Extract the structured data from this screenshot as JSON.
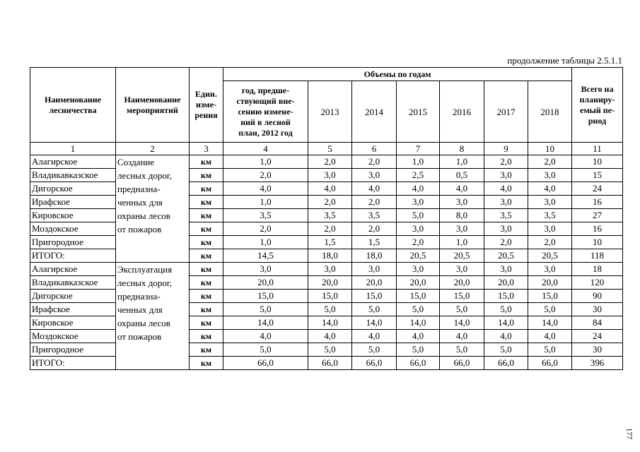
{
  "caption": "продолжение таблицы 2.5.1.1",
  "header": {
    "forestry": "Наименование\nлесничества",
    "activity": "Наименование\nмероприятий",
    "unit": "Един.\nизме-\nрения",
    "group": "Объемы по годам",
    "base_year": "год, предше-\nствующий вне-\nсению измене-\nний в лесной\nплан, 2012 год",
    "years": [
      "2013",
      "2014",
      "2015",
      "2016",
      "2017",
      "2018"
    ],
    "total": "Всего на\nпланиру-\nемый пе-\nриод"
  },
  "column_numbers": [
    "1",
    "2",
    "3",
    "4",
    "5",
    "6",
    "7",
    "8",
    "9",
    "10",
    "11"
  ],
  "sections": [
    {
      "activity": "Создание\nлесных дорог,\nпредназна-\nченных для\nохраны лесов\nот пожаров",
      "rows": [
        [
          "Алагирское",
          "км",
          "1,0",
          "2,0",
          "2,0",
          "1,0",
          "1,0",
          "2,0",
          "2,0",
          "10"
        ],
        [
          "Владикавказское",
          "км",
          "2,0",
          "3,0",
          "3,0",
          "2,5",
          "0,5",
          "3,0",
          "3,0",
          "15"
        ],
        [
          "Дигорское",
          "км",
          "4,0",
          "4,0",
          "4,0",
          "4,0",
          "4,0",
          "4,0",
          "4,0",
          "24"
        ],
        [
          "Ирафское",
          "км",
          "1,0",
          "2,0",
          "2,0",
          "3,0",
          "3,0",
          "3,0",
          "3,0",
          "16"
        ],
        [
          "Кировское",
          "км",
          "3,5",
          "3,5",
          "3,5",
          "5,0",
          "8,0",
          "3,5",
          "3,5",
          "27"
        ],
        [
          "Моздокское",
          "км",
          "2,0",
          "2,0",
          "2,0",
          "3,0",
          "3,0",
          "3,0",
          "3,0",
          "16"
        ],
        [
          "Пригородное",
          "км",
          "1,0",
          "1,5",
          "1,5",
          "2,0",
          "1,0",
          "2,0",
          "2,0",
          "10"
        ],
        [
          "ИТОГО:",
          "км",
          "14,5",
          "18,0",
          "18,0",
          "20,5",
          "20,5",
          "20,5",
          "20,5",
          "118"
        ]
      ]
    },
    {
      "activity": "Эксплуатация\nлесных дорог,\nпредназна-\nченных для\nохраны лесов\nот пожаров",
      "rows": [
        [
          "Алагирское",
          "км",
          "3,0",
          "3,0",
          "3,0",
          "3,0",
          "3,0",
          "3,0",
          "3,0",
          "18"
        ],
        [
          "Владикавказское",
          "км",
          "20,0",
          "20,0",
          "20,0",
          "20,0",
          "20,0",
          "20,0",
          "20,0",
          "120"
        ],
        [
          "Дигорское",
          "км",
          "15,0",
          "15,0",
          "15,0",
          "15,0",
          "15,0",
          "15,0",
          "15,0",
          "90"
        ],
        [
          "Ирафское",
          "км",
          "5,0",
          "5,0",
          "5,0",
          "5,0",
          "5,0",
          "5,0",
          "5,0",
          "30"
        ],
        [
          "Кировское",
          "км",
          "14,0",
          "14,0",
          "14,0",
          "14,0",
          "14,0",
          "14,0",
          "14,0",
          "84"
        ],
        [
          "Моздокское",
          "км",
          "4,0",
          "4,0",
          "4,0",
          "4,0",
          "4,0",
          "4,0",
          "4,0",
          "24"
        ],
        [
          "Пригородное",
          "км",
          "5,0",
          "5,0",
          "5,0",
          "5,0",
          "5,0",
          "5,0",
          "5,0",
          "30"
        ],
        [
          "ИТОГО:",
          "км",
          "66,0",
          "66,0",
          "66,0",
          "66,0",
          "66,0",
          "66,0",
          "66,0",
          "396"
        ]
      ]
    }
  ],
  "page_number": "177"
}
